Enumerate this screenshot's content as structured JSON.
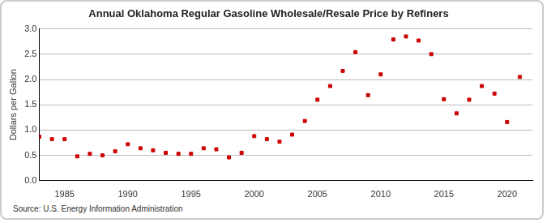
{
  "chart_data": {
    "type": "scatter",
    "title": "Annual Oklahoma Regular Gasoline Wholesale/Resale Price by Refiners",
    "y_label": "Dollars per Gallon",
    "source": "Source: U.S. Energy Information Administration",
    "x": [
      1983,
      1984,
      1985,
      1986,
      1987,
      1988,
      1989,
      1990,
      1991,
      1992,
      1993,
      1994,
      1995,
      1996,
      1997,
      1998,
      1999,
      2000,
      2001,
      2002,
      2003,
      2004,
      2005,
      2006,
      2007,
      2008,
      2009,
      2010,
      2011,
      2012,
      2013,
      2014,
      2015,
      2016,
      2017,
      2018,
      2019,
      2020,
      2021
    ],
    "values": [
      0.87,
      0.82,
      0.82,
      0.48,
      0.53,
      0.5,
      0.58,
      0.72,
      0.64,
      0.6,
      0.55,
      0.53,
      0.53,
      0.64,
      0.62,
      0.46,
      0.55,
      0.88,
      0.82,
      0.77,
      0.91,
      1.18,
      1.6,
      1.87,
      2.17,
      2.54,
      1.69,
      2.1,
      2.79,
      2.85,
      2.77,
      2.5,
      1.61,
      1.33,
      1.6,
      1.87,
      1.72,
      1.16,
      2.05
    ],
    "color": "#cc0000",
    "marker": "square",
    "xlim": [
      1983,
      2022
    ],
    "xticks": [
      1985,
      1990,
      1995,
      2000,
      2005,
      2010,
      2015,
      2020
    ],
    "ylim": [
      0,
      3
    ],
    "yticks": [
      {
        "value": 0,
        "label": "0.0"
      },
      0.5,
      {
        "value": 1,
        "label": "1.0"
      },
      1.5,
      {
        "value": 2,
        "label": "2.0"
      },
      2.5,
      {
        "value": 3,
        "label": "3.0"
      }
    ],
    "grid": true
  }
}
